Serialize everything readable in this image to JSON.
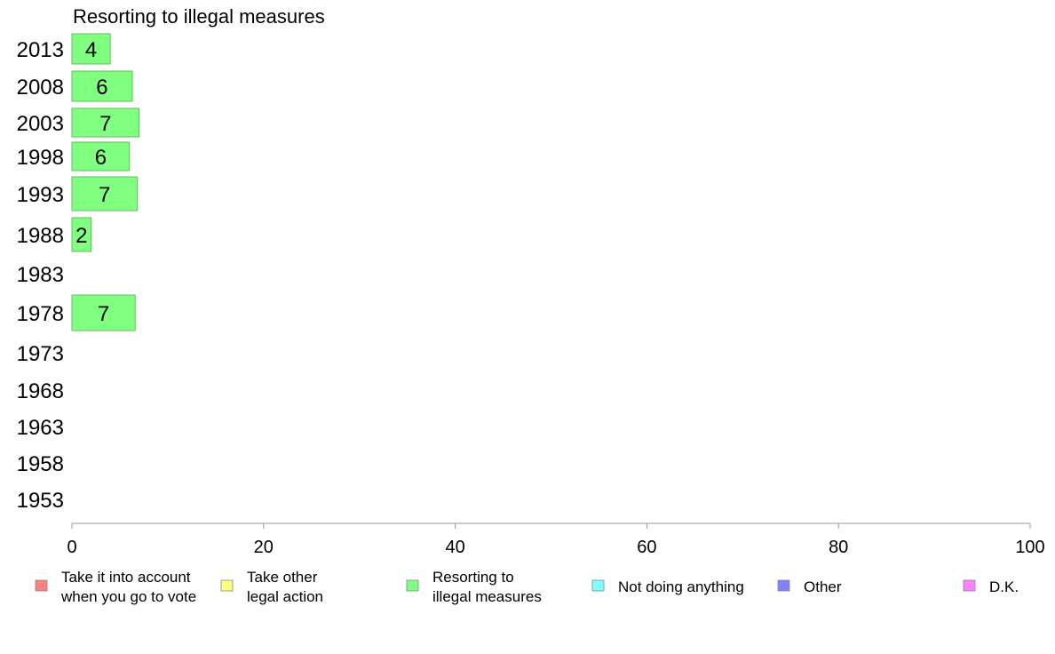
{
  "chart_data": {
    "type": "bar",
    "orientation": "horizontal",
    "title": "Resorting to illegal measures",
    "categories": [
      "2013",
      "2008",
      "2003",
      "1998",
      "1993",
      "1988",
      "1983",
      "1978",
      "1973",
      "1968",
      "1963",
      "1958",
      "1953"
    ],
    "series": [
      {
        "name": "Resorting to illegal measures",
        "color": "#80ff80",
        "values": [
          4,
          6.3,
          7,
          6,
          6.8,
          2,
          null,
          6.6,
          null,
          null,
          null,
          null,
          null
        ],
        "labels": [
          "4",
          "6",
          "7",
          "6",
          "7",
          "2",
          "",
          "7",
          "",
          "",
          "",
          "",
          ""
        ]
      }
    ],
    "xlim": [
      0,
      100
    ],
    "xticks": [
      0,
      20,
      40,
      60,
      80,
      100
    ],
    "grid": false,
    "legend_placement": "bottom",
    "legend": [
      {
        "label_lines": [
          "Take it into account",
          "when you go to vote"
        ],
        "color": "#ff8080"
      },
      {
        "label_lines": [
          "Take other",
          "legal action"
        ],
        "color": "#ffff80"
      },
      {
        "label_lines": [
          "Resorting to",
          "illegal measures"
        ],
        "color": "#80ff80"
      },
      {
        "label_lines": [
          "Not doing anything"
        ],
        "color": "#80ffff"
      },
      {
        "label_lines": [
          "Other"
        ],
        "color": "#8080ff"
      },
      {
        "label_lines": [
          "D.K."
        ],
        "color": "#ff80ff"
      }
    ]
  }
}
